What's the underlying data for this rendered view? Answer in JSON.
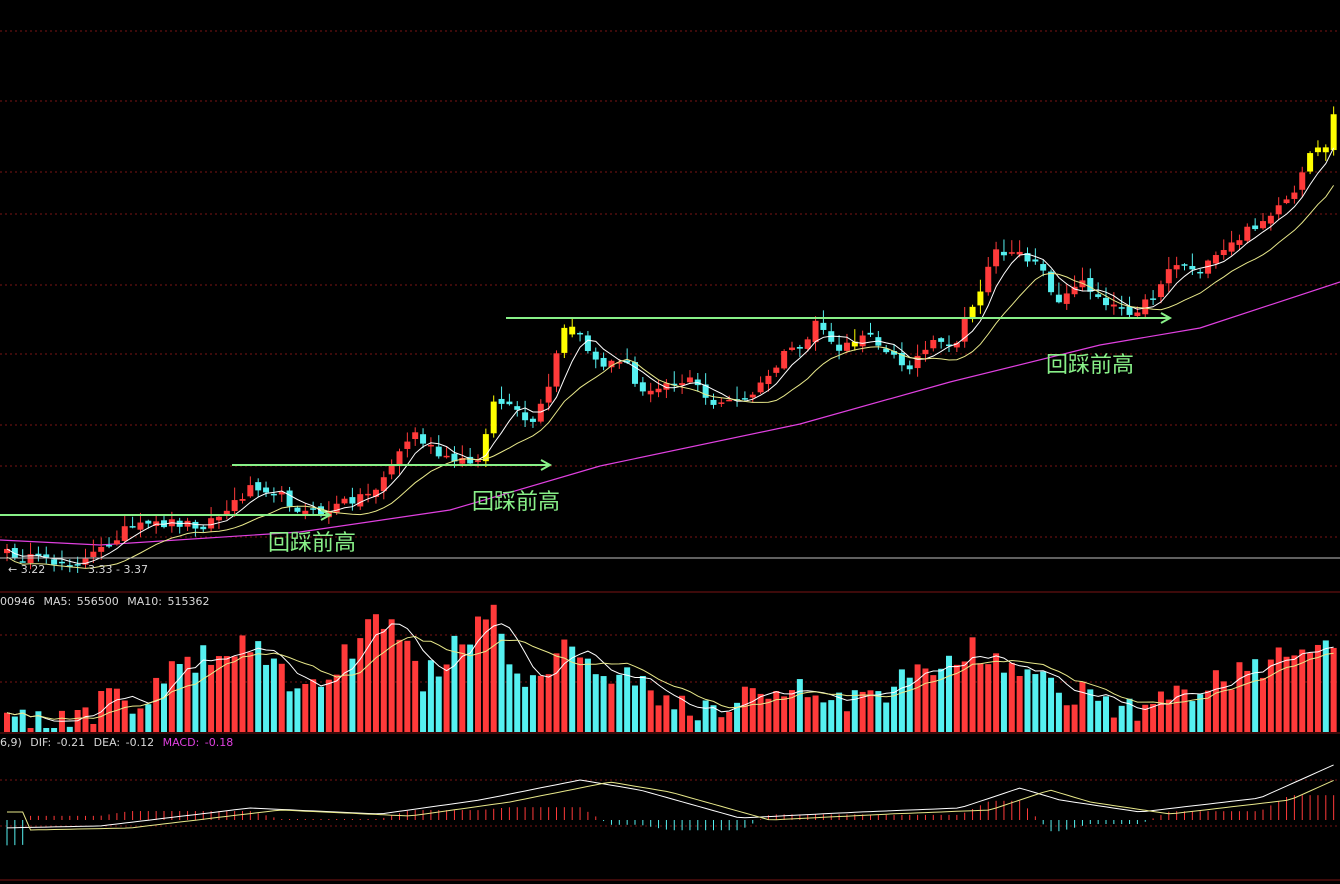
{
  "colors": {
    "background": "#000000",
    "up": "#ff3a3a",
    "down": "#55f0f0",
    "highlight": "#ffff00",
    "ma_fast": "#ffffff",
    "ma_mid": "#e8e88a",
    "ma_long": "#e040e0",
    "support": "#88f088",
    "grid": "#7a1414",
    "divider": "#c0c0c0",
    "text": "#d8d8d8"
  },
  "price_panel": {
    "price_low_marker": "3.22",
    "price_range_text": "3.33 - 3.37",
    "annotations": [
      "回踩前高",
      "回踩前高",
      "回踩前高"
    ]
  },
  "volume_panel": {
    "header_prefix": "00946",
    "ma5_label": "MA5:",
    "ma5_value": "556500",
    "ma10_label": "MA10:",
    "ma10_value": "515362"
  },
  "macd_panel": {
    "header_prefix": "6,9)",
    "dif_label": "DIF:",
    "dif_value": "-0.21",
    "dea_label": "DEA:",
    "dea_value": "-0.12",
    "macd_label": "MACD:",
    "macd_value": "-0.18"
  },
  "chart_data": [
    {
      "type": "candlestick",
      "series": [
        {
          "name": "",
          "values": [
            3.22,
            3.21,
            3.23,
            3.26,
            3.33,
            3.4,
            3.46,
            3.5,
            3.53,
            3.58,
            3.63,
            3.6,
            3.67,
            3.65,
            3.75,
            3.85,
            3.99,
            3.89,
            3.82,
            3.95,
            4.02,
            4.3,
            4.5,
            4.7,
            4.58,
            4.72,
            4.96,
            4.8,
            4.62,
            4.66,
            4.58,
            4.64,
            4.7,
            4.92,
            4.96,
            5.02,
            5.2,
            5.16,
            4.98,
            5.12,
            5.44,
            5.22,
            5.24,
            5.34,
            5.32,
            5.64,
            5.72,
            5.52,
            5.38,
            5.56,
            5.74,
            5.84,
            5.72,
            6.04,
            6.06,
            6.16,
            6.22,
            6.32
          ]
        }
      ],
      "note_series": []
    },
    {
      "type": "bar",
      "series": [
        {
          "name": "MA5",
          "values": []
        },
        {
          "name": "MA10",
          "values": []
        }
      ]
    },
    {
      "type": "bar",
      "series": [
        {
          "name": "DIF",
          "values": []
        },
        {
          "name": "DEA",
          "values": []
        },
        {
          "name": "MACD",
          "values": []
        }
      ]
    }
  ]
}
